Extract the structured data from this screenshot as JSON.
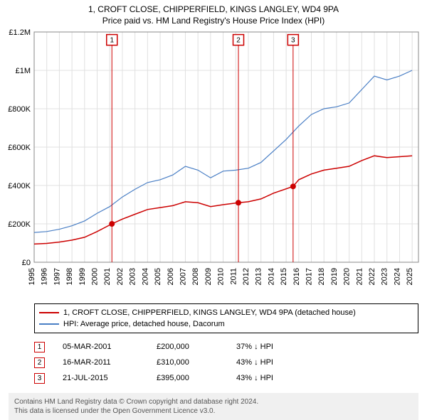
{
  "title": "1, CROFT CLOSE, CHIPPERFIELD, KINGS LANGLEY, WD4 9PA",
  "subtitle": "Price paid vs. HM Land Registry's House Price Index (HPI)",
  "chart": {
    "type": "line",
    "background_color": "#ffffff",
    "grid_color": "#e0e0e0",
    "plot_border_color": "#888888",
    "x_axis": {
      "ticks": [
        1995,
        1996,
        1997,
        1998,
        1999,
        2000,
        2001,
        2002,
        2003,
        2004,
        2005,
        2006,
        2007,
        2008,
        2009,
        2010,
        2011,
        2012,
        2013,
        2014,
        2015,
        2016,
        2017,
        2018,
        2019,
        2020,
        2021,
        2022,
        2023,
        2024,
        2025
      ],
      "min": 1995,
      "max": 2025.5,
      "label_rotation": -90,
      "label_fontsize": 11
    },
    "y_axis": {
      "ticks": [
        0,
        200000,
        400000,
        600000,
        800000,
        1000000,
        1200000
      ],
      "tick_labels": [
        "£0",
        "£200K",
        "£400K",
        "£600K",
        "£800K",
        "£1M",
        "£1.2M"
      ],
      "min": 0,
      "max": 1200000,
      "label_fontsize": 11
    },
    "series": [
      {
        "id": "price_paid",
        "label": "1, CROFT CLOSE, CHIPPERFIELD, KINGS LANGLEY, WD4 9PA (detached house)",
        "color": "#cc0000",
        "line_width": 1.5,
        "points": [
          [
            1995,
            95000
          ],
          [
            1996,
            98000
          ],
          [
            1997,
            105000
          ],
          [
            1998,
            115000
          ],
          [
            1999,
            130000
          ],
          [
            2000,
            160000
          ],
          [
            2001.17,
            200000
          ],
          [
            2002,
            225000
          ],
          [
            2003,
            250000
          ],
          [
            2004,
            275000
          ],
          [
            2005,
            285000
          ],
          [
            2006,
            295000
          ],
          [
            2007,
            315000
          ],
          [
            2008,
            310000
          ],
          [
            2009,
            290000
          ],
          [
            2010,
            300000
          ],
          [
            2011.21,
            310000
          ],
          [
            2012,
            315000
          ],
          [
            2013,
            330000
          ],
          [
            2014,
            360000
          ],
          [
            2015.55,
            395000
          ],
          [
            2016,
            430000
          ],
          [
            2017,
            460000
          ],
          [
            2018,
            480000
          ],
          [
            2019,
            490000
          ],
          [
            2020,
            500000
          ],
          [
            2021,
            530000
          ],
          [
            2022,
            555000
          ],
          [
            2023,
            545000
          ],
          [
            2024,
            550000
          ],
          [
            2025,
            555000
          ]
        ]
      },
      {
        "id": "hpi",
        "label": "HPI: Average price, detached house, Dacorum",
        "color": "#4a7fc5",
        "line_width": 1.2,
        "points": [
          [
            1995,
            155000
          ],
          [
            1996,
            160000
          ],
          [
            1997,
            172000
          ],
          [
            1998,
            190000
          ],
          [
            1999,
            215000
          ],
          [
            2000,
            255000
          ],
          [
            2001,
            290000
          ],
          [
            2002,
            340000
          ],
          [
            2003,
            380000
          ],
          [
            2004,
            415000
          ],
          [
            2005,
            430000
          ],
          [
            2006,
            455000
          ],
          [
            2007,
            500000
          ],
          [
            2008,
            480000
          ],
          [
            2009,
            440000
          ],
          [
            2010,
            475000
          ],
          [
            2011,
            480000
          ],
          [
            2012,
            490000
          ],
          [
            2013,
            520000
          ],
          [
            2014,
            580000
          ],
          [
            2015,
            640000
          ],
          [
            2016,
            710000
          ],
          [
            2017,
            770000
          ],
          [
            2018,
            800000
          ],
          [
            2019,
            810000
          ],
          [
            2020,
            830000
          ],
          [
            2021,
            900000
          ],
          [
            2022,
            970000
          ],
          [
            2023,
            950000
          ],
          [
            2024,
            970000
          ],
          [
            2025,
            1000000
          ]
        ]
      }
    ],
    "sale_markers": [
      {
        "num": "1",
        "x": 2001.17,
        "y_top": 1120000,
        "color": "#cc0000"
      },
      {
        "num": "2",
        "x": 2011.21,
        "y_top": 1120000,
        "color": "#cc0000"
      },
      {
        "num": "3",
        "x": 2015.55,
        "y_top": 1120000,
        "color": "#cc0000"
      }
    ],
    "sale_points": [
      {
        "x": 2001.17,
        "y": 200000,
        "color": "#cc0000",
        "r": 4
      },
      {
        "x": 2011.21,
        "y": 310000,
        "color": "#cc0000",
        "r": 4
      },
      {
        "x": 2015.55,
        "y": 395000,
        "color": "#cc0000",
        "r": 4
      }
    ]
  },
  "legend": {
    "items": [
      {
        "color": "#cc0000",
        "label": "1, CROFT CLOSE, CHIPPERFIELD, KINGS LANGLEY, WD4 9PA (detached house)"
      },
      {
        "color": "#4a7fc5",
        "label": "HPI: Average price, detached house, Dacorum"
      }
    ]
  },
  "sales": [
    {
      "num": "1",
      "color": "#cc0000",
      "date": "05-MAR-2001",
      "price": "£200,000",
      "delta": "37% ↓ HPI"
    },
    {
      "num": "2",
      "color": "#cc0000",
      "date": "16-MAR-2011",
      "price": "£310,000",
      "delta": "43% ↓ HPI"
    },
    {
      "num": "3",
      "color": "#cc0000",
      "date": "21-JUL-2015",
      "price": "£395,000",
      "delta": "43% ↓ HPI"
    }
  ],
  "footer": {
    "line1": "Contains HM Land Registry data © Crown copyright and database right 2024.",
    "line2": "This data is licensed under the Open Government Licence v3.0."
  }
}
